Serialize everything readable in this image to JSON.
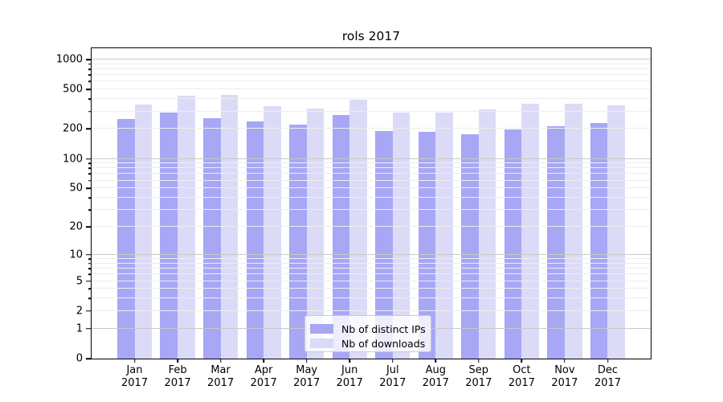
{
  "title": "rols 2017",
  "chart_data": {
    "type": "bar",
    "title": "rols 2017",
    "yscale": "log1p",
    "ylim": [
      0,
      1296
    ],
    "grid": true,
    "legend_position": "lower center",
    "categories": [
      "Jan 2017",
      "Feb 2017",
      "Mar 2017",
      "Apr 2017",
      "May 2017",
      "Jun 2017",
      "Jul 2017",
      "Aug 2017",
      "Sep 2017",
      "Oct 2017",
      "Nov 2017",
      "Dec 2017"
    ],
    "series": [
      {
        "name": "Nb of distinct IPs",
        "color": "#a7a7f6",
        "values": [
          253,
          293,
          257,
          238,
          220,
          278,
          192,
          186,
          178,
          198,
          212,
          230
        ]
      },
      {
        "name": "Nb of downloads",
        "color": "#dbdbf8",
        "values": [
          350,
          436,
          443,
          341,
          321,
          392,
          293,
          294,
          317,
          359,
          361,
          346
        ]
      }
    ],
    "y_ticks": [
      0,
      1,
      2,
      5,
      10,
      20,
      50,
      100,
      200,
      500,
      1000
    ],
    "y_major_gridlines": [
      1,
      10,
      100,
      1000
    ],
    "y_minor_gridlines": [
      2,
      3,
      4,
      5,
      6,
      7,
      8,
      9,
      20,
      30,
      40,
      50,
      60,
      70,
      80,
      90,
      200,
      300,
      400,
      500,
      600,
      700,
      800,
      900
    ]
  },
  "colors": {
    "major_grid": "#c8c8c8",
    "minor_grid": "#ededed",
    "spine": "#000000",
    "legend_border": "#cccccc"
  }
}
